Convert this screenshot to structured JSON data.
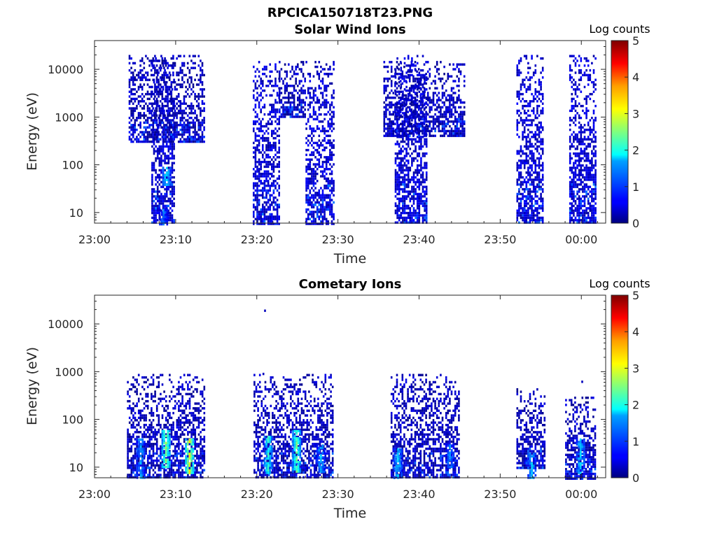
{
  "figure": {
    "title": "RPCICA150718T23.PNG"
  },
  "chart_data": [
    {
      "type": "heatmap",
      "title": "Solar Wind Ions",
      "xlabel": "Time",
      "ylabel": "Energy (eV)",
      "x_ticks": [
        "23:00",
        "23:10",
        "23:20",
        "23:30",
        "23:40",
        "23:50",
        "00:00"
      ],
      "x_tick_minutes": [
        0,
        10,
        20,
        30,
        40,
        50,
        60
      ],
      "xlim_minutes": [
        0,
        63
      ],
      "y_scale": "log",
      "y_ticks": [
        "10",
        "100",
        "1000",
        "10000"
      ],
      "y_tick_values": [
        10,
        100,
        1000,
        10000
      ],
      "ylim": [
        6,
        40000
      ],
      "colorbar": {
        "label": "Log counts",
        "ticks": [
          "0",
          "1",
          "2",
          "3",
          "4",
          "5"
        ],
        "range": [
          0,
          5
        ],
        "colormap": "jet"
      },
      "bursts": [
        {
          "t_start": 7.0,
          "t_end": 9.7,
          "e_min": 6,
          "e_max": 20000,
          "log_counts": 0.4
        },
        {
          "t_start": 4.2,
          "t_end": 13.5,
          "e_min": 300,
          "e_max": 20000,
          "log_counts": 0.3
        },
        {
          "t_start": 19.5,
          "t_end": 22.7,
          "e_min": 6,
          "e_max": 15000,
          "log_counts": 0.4
        },
        {
          "t_start": 22.7,
          "t_end": 26.0,
          "e_min": 1000,
          "e_max": 15000,
          "log_counts": 0.3
        },
        {
          "t_start": 26.0,
          "t_end": 29.4,
          "e_min": 6,
          "e_max": 15000,
          "log_counts": 0.4
        },
        {
          "t_start": 37.0,
          "t_end": 41.0,
          "e_min": 6,
          "e_max": 20000,
          "log_counts": 0.4
        },
        {
          "t_start": 35.6,
          "t_end": 45.6,
          "e_min": 400,
          "e_max": 15000,
          "log_counts": 0.3
        },
        {
          "t_start": 52.0,
          "t_end": 55.2,
          "e_min": 6,
          "e_max": 20000,
          "log_counts": 0.4
        },
        {
          "t_start": 58.5,
          "t_end": 61.8,
          "e_min": 6,
          "e_max": 20000,
          "log_counts": 0.4
        }
      ],
      "peaks": [
        {
          "t": 8.8,
          "e_min": 40,
          "e_max": 90,
          "log_counts": 1.8
        },
        {
          "t": 8.4,
          "e_min": 6,
          "e_max": 12,
          "log_counts": 1.1
        }
      ]
    },
    {
      "type": "heatmap",
      "title": "Cometary Ions",
      "xlabel": "Time",
      "ylabel": "Energy (eV)",
      "x_ticks": [
        "23:00",
        "23:10",
        "23:20",
        "23:30",
        "23:40",
        "23:50",
        "00:00"
      ],
      "x_tick_minutes": [
        0,
        10,
        20,
        30,
        40,
        50,
        60
      ],
      "xlim_minutes": [
        0,
        63
      ],
      "y_scale": "log",
      "y_ticks": [
        "10",
        "100",
        "1000",
        "10000"
      ],
      "y_tick_values": [
        10,
        100,
        1000,
        10000
      ],
      "ylim": [
        6,
        40000
      ],
      "colorbar": {
        "label": "Log counts",
        "ticks": [
          "0",
          "1",
          "2",
          "3",
          "4",
          "5"
        ],
        "range": [
          0,
          5
        ],
        "colormap": "jet"
      },
      "bursts": [
        {
          "t_start": 4.0,
          "t_end": 13.6,
          "e_min": 6,
          "e_max": 900,
          "log_counts": 0.3
        },
        {
          "t_start": 19.6,
          "t_end": 29.4,
          "e_min": 6,
          "e_max": 900,
          "log_counts": 0.3
        },
        {
          "t_start": 36.5,
          "t_end": 45.0,
          "e_min": 6,
          "e_max": 900,
          "log_counts": 0.3
        },
        {
          "t_start": 52.0,
          "t_end": 55.5,
          "e_min": 10,
          "e_max": 450,
          "log_counts": 0.3
        },
        {
          "t_start": 58.0,
          "t_end": 61.6,
          "e_min": 6,
          "e_max": 300,
          "log_counts": 0.3
        }
      ],
      "peaks": [
        {
          "t": 5.6,
          "e_min": 6,
          "e_max": 40,
          "log_counts": 1.4
        },
        {
          "t": 8.7,
          "e_min": 10,
          "e_max": 60,
          "log_counts": 2.5
        },
        {
          "t": 11.6,
          "e_min": 8,
          "e_max": 40,
          "log_counts": 3.0
        },
        {
          "t": 21.3,
          "e_min": 8,
          "e_max": 45,
          "log_counts": 2.0
        },
        {
          "t": 24.8,
          "e_min": 8,
          "e_max": 60,
          "log_counts": 2.3
        },
        {
          "t": 27.8,
          "e_min": 8,
          "e_max": 30,
          "log_counts": 1.5
        },
        {
          "t": 37.3,
          "e_min": 6,
          "e_max": 25,
          "log_counts": 1.6
        },
        {
          "t": 43.7,
          "e_min": 10,
          "e_max": 30,
          "log_counts": 1.3
        },
        {
          "t": 53.8,
          "e_min": 6,
          "e_max": 20,
          "log_counts": 1.5
        },
        {
          "t": 59.8,
          "e_min": 8,
          "e_max": 40,
          "log_counts": 1.6
        }
      ],
      "outliers": [
        {
          "t": 20.9,
          "e": 20000,
          "log_counts": 0.3
        },
        {
          "t": 20.7,
          "e": 950,
          "log_counts": 0.3
        },
        {
          "t": 60.0,
          "e": 650,
          "log_counts": 0.3
        }
      ]
    }
  ]
}
